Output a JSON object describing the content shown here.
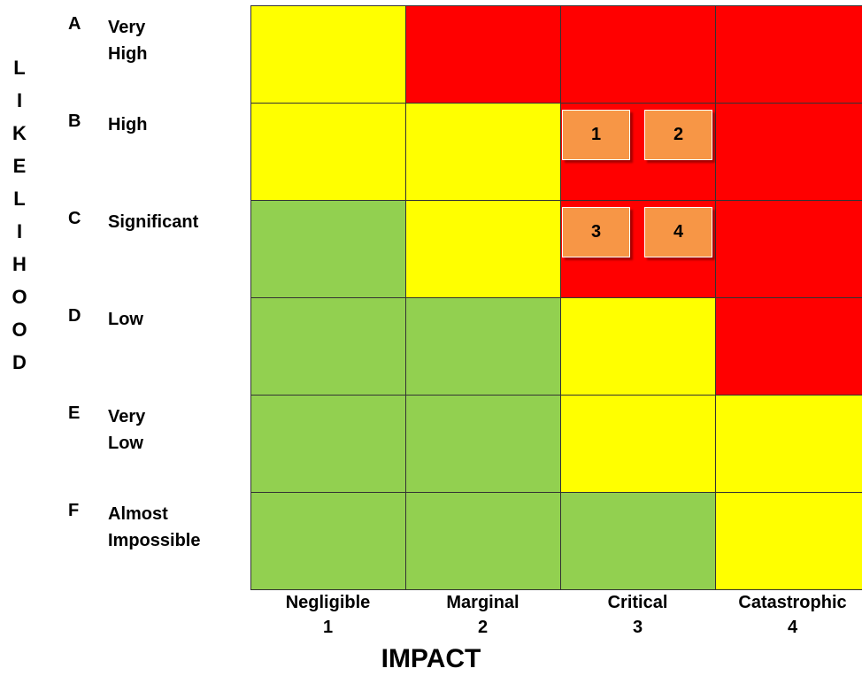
{
  "matrix": {
    "y_axis_title": "LIKELIHOOD",
    "x_axis_title": "IMPACT",
    "rows": [
      {
        "letter": "A",
        "label": "Very High",
        "colors": [
          "#ffff00",
          "#ff0000",
          "#ff0000",
          "#ff0000"
        ]
      },
      {
        "letter": "B",
        "label": "High",
        "colors": [
          "#ffff00",
          "#ffff00",
          "#ff0000",
          "#ff0000"
        ]
      },
      {
        "letter": "C",
        "label": "Significant",
        "colors": [
          "#92d050",
          "#ffff00",
          "#ff0000",
          "#ff0000"
        ]
      },
      {
        "letter": "D",
        "label": "Low",
        "colors": [
          "#92d050",
          "#92d050",
          "#ffff00",
          "#ff0000"
        ]
      },
      {
        "letter": "E",
        "label": "Very Low",
        "colors": [
          "#92d050",
          "#92d050",
          "#ffff00",
          "#ffff00"
        ]
      },
      {
        "letter": "F",
        "label": "Almost Impossible",
        "colors": [
          "#92d050",
          "#92d050",
          "#92d050",
          "#ffff00"
        ]
      }
    ],
    "columns": [
      {
        "name": "Negligible",
        "number": "1"
      },
      {
        "name": "Marginal",
        "number": "2"
      },
      {
        "name": "Critical",
        "number": "3"
      },
      {
        "name": "Catastrophic",
        "number": "4"
      }
    ],
    "risks": [
      {
        "id": "1",
        "row": "B",
        "column": "3"
      },
      {
        "id": "2",
        "row": "B",
        "column": "3"
      },
      {
        "id": "3",
        "row": "C",
        "column": "3"
      },
      {
        "id": "4",
        "row": "C",
        "column": "3"
      }
    ],
    "colors": {
      "green": "#92d050",
      "yellow": "#ffff00",
      "red": "#ff0000",
      "marker": "#f79646"
    }
  }
}
